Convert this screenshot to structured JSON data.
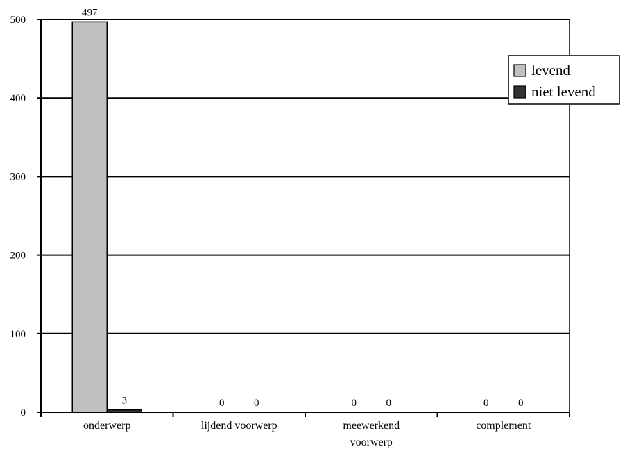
{
  "chart_data": {
    "type": "bar",
    "title": "",
    "xlabel": "",
    "ylabel": "",
    "categories": [
      [
        "onderwerp"
      ],
      [
        "lijdend voorwerp"
      ],
      [
        "meewerkend",
        "voorwerp"
      ],
      [
        "complement"
      ]
    ],
    "series": [
      {
        "name": "levend",
        "values": [
          497,
          0,
          0,
          0
        ],
        "color": "#c0c0c0"
      },
      {
        "name": "niet levend",
        "values": [
          3,
          0,
          0,
          0
        ],
        "color": "#333333"
      }
    ],
    "ylim": [
      0,
      500
    ],
    "yticks": [
      0,
      100,
      200,
      300,
      400,
      500
    ],
    "grid": true,
    "legend_position": "top-right",
    "data_labels": true
  }
}
